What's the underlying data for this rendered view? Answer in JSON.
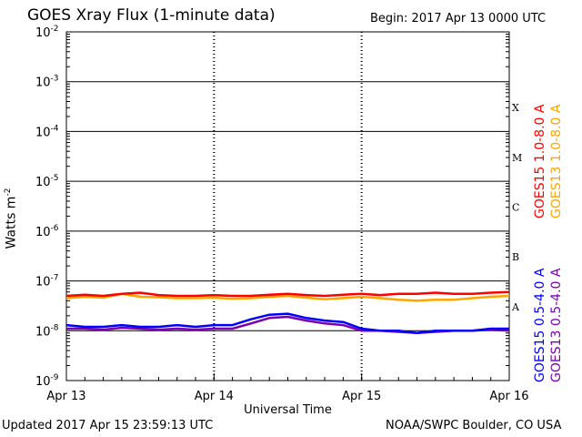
{
  "page": {
    "title": "GOES Xray Flux (1-minute data)",
    "begin_label": "Begin:",
    "begin_value": "2017 Apr 13 0000 UTC",
    "updated": "Updated 2017 Apr 15 23:59:13 UTC",
    "credit": "NOAA/SWPC Boulder, CO USA"
  },
  "chart_data": {
    "type": "line",
    "title": "GOES Xray Flux (1-minute data)",
    "xlabel": "Universal Time",
    "ylabel": "Watts m",
    "ylabel_sup": "-2",
    "yscale": "log",
    "ylim": [
      1e-09,
      0.01
    ],
    "yticks": [
      {
        "base": "10",
        "exp": "-2"
      },
      {
        "base": "10",
        "exp": "-3"
      },
      {
        "base": "10",
        "exp": "-4"
      },
      {
        "base": "10",
        "exp": "-5"
      },
      {
        "base": "10",
        "exp": "-6"
      },
      {
        "base": "10",
        "exp": "-7"
      },
      {
        "base": "10",
        "exp": "-8"
      },
      {
        "base": "10",
        "exp": "-9"
      }
    ],
    "x_tick_labels": [
      "Apr 13",
      "Apr 14",
      "Apr 15",
      "Apr 16"
    ],
    "xlim_hours": [
      0,
      72
    ],
    "flare_classes": [
      "X",
      "M",
      "C",
      "B",
      "A"
    ],
    "grid": true,
    "legend_position": "right",
    "series": [
      {
        "name": "GOES15 1.0-8.0 A",
        "color": "#ff0000",
        "x": [
          0,
          3,
          6,
          9,
          12,
          15,
          18,
          21,
          24,
          27,
          30,
          33,
          36,
          39,
          42,
          45,
          48,
          51,
          54,
          57,
          60,
          63,
          66,
          69,
          72
        ],
        "y": [
          5e-08,
          5.3e-08,
          5e-08,
          5.5e-08,
          5.8e-08,
          5.2e-08,
          5e-08,
          5e-08,
          5.2e-08,
          5e-08,
          5e-08,
          5.3e-08,
          5.5e-08,
          5.2e-08,
          5e-08,
          5.3e-08,
          5.5e-08,
          5.2e-08,
          5.5e-08,
          5.5e-08,
          5.8e-08,
          5.5e-08,
          5.5e-08,
          5.8e-08,
          6e-08
        ]
      },
      {
        "name": "GOES13 1.0-8.0 A",
        "color": "#ffa500",
        "x": [
          0,
          3,
          6,
          9,
          12,
          15,
          18,
          21,
          24,
          27,
          30,
          33,
          36,
          39,
          42,
          45,
          48,
          51,
          54,
          57,
          60,
          63,
          66,
          69,
          72
        ],
        "y": [
          4.5e-08,
          4.8e-08,
          4.6e-08,
          5.5e-08,
          4.8e-08,
          4.7e-08,
          4.5e-08,
          4.5e-08,
          4.6e-08,
          4.4e-08,
          4.5e-08,
          4.8e-08,
          5e-08,
          4.6e-08,
          4.3e-08,
          4.5e-08,
          4.8e-08,
          4.5e-08,
          4.2e-08,
          4e-08,
          4.2e-08,
          4.2e-08,
          4.5e-08,
          4.8e-08,
          5e-08
        ]
      },
      {
        "name": "GOES15 0.5-4.0 A",
        "color": "#0000ff",
        "x": [
          0,
          3,
          6,
          9,
          12,
          15,
          18,
          21,
          24,
          27,
          30,
          33,
          36,
          39,
          42,
          45,
          48,
          51,
          54,
          57,
          60,
          63,
          66,
          69,
          72
        ],
        "y": [
          1.3e-08,
          1.2e-08,
          1.2e-08,
          1.3e-08,
          1.2e-08,
          1.2e-08,
          1.3e-08,
          1.2e-08,
          1.3e-08,
          1.3e-08,
          1.7e-08,
          2.1e-08,
          2.2e-08,
          1.8e-08,
          1.6e-08,
          1.5e-08,
          1.1e-08,
          1e-08,
          1e-08,
          9e-09,
          1e-08,
          1e-08,
          1e-08,
          1.1e-08,
          1.1e-08
        ]
      },
      {
        "name": "GOES13 0.5-4.0 A",
        "color": "#7b00b0",
        "x": [
          0,
          3,
          6,
          9,
          12,
          15,
          18,
          21,
          24,
          27,
          30,
          33,
          36,
          39,
          42,
          45,
          48,
          51,
          54,
          57,
          60,
          63,
          66,
          69,
          72
        ],
        "y": [
          1.1e-08,
          1.1e-08,
          1.05e-08,
          1.15e-08,
          1.1e-08,
          1.05e-08,
          1.1e-08,
          1.05e-08,
          1.1e-08,
          1.1e-08,
          1.4e-08,
          1.8e-08,
          1.9e-08,
          1.6e-08,
          1.4e-08,
          1.3e-08,
          1e-08,
          1e-08,
          9.5e-09,
          9e-09,
          9.5e-09,
          1e-08,
          1e-08,
          1.05e-08,
          1e-08
        ]
      }
    ]
  }
}
